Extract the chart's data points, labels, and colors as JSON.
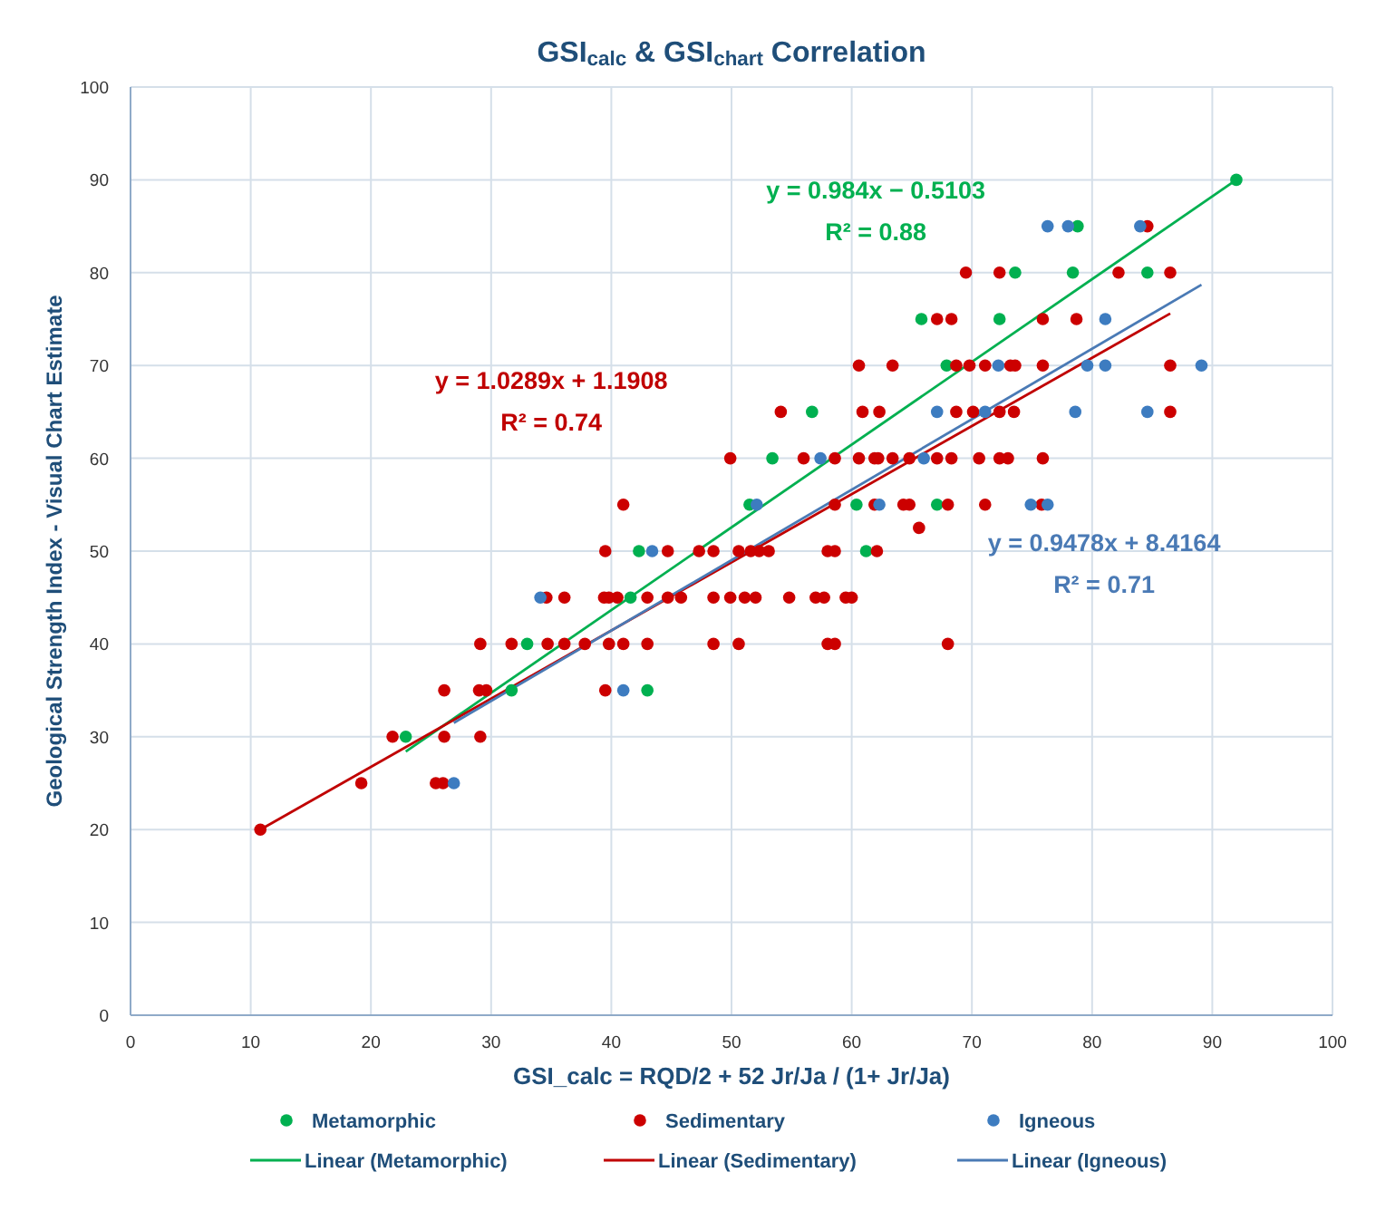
{
  "chart_data": {
    "type": "scatter",
    "title": "GSI$_{calc}$ & GSI$_{chart}$ Correlation",
    "xlabel": "GSI_calc = RQD/2 + 52 Jr/Ja / (1+ Jr/Ja)",
    "ylabel": "Geological Strength Index - Visual Chart Estimate",
    "xlim": [
      0,
      100
    ],
    "xticks": [
      0,
      10,
      20,
      30,
      40,
      50,
      60,
      70,
      80,
      90,
      100
    ],
    "ylim": [
      0,
      100
    ],
    "yticks": [
      0,
      10,
      20,
      30,
      40,
      50,
      60,
      70,
      80,
      90,
      100
    ],
    "grid": true,
    "legend": "bottom",
    "series": [
      {
        "name": "Metamorphic",
        "marker": "circle",
        "color": "#00b050",
        "x": [
          22.9,
          31.7,
          33,
          41.6,
          42.3,
          43,
          51.5,
          53.4,
          56.7,
          60.4,
          61.2,
          65.8,
          67.1,
          67.9,
          72.3,
          73.6,
          78.4,
          84.6,
          78.8,
          92
        ],
        "values": [
          30,
          35,
          40,
          45,
          50,
          35,
          55,
          60,
          65,
          55,
          50,
          75,
          55,
          70,
          75,
          80,
          80,
          80,
          85,
          90
        ]
      },
      {
        "name": "Sedimentary",
        "marker": "circle",
        "color": "#cc0000",
        "x": [
          10.8,
          19.2,
          25.4,
          26,
          21.8,
          26.1,
          29.1,
          26.1,
          29,
          29.6,
          39.5,
          29.1,
          31.7,
          34.7,
          36.1,
          37.8,
          39.8,
          41,
          43,
          48.5,
          50.6,
          58,
          58.6,
          68,
          34.6,
          36.1,
          39.4,
          39.8,
          40.5,
          43,
          44.7,
          45.8,
          48.5,
          49.9,
          51.1,
          52,
          54.8,
          57,
          57.7,
          59.5,
          60,
          39.5,
          44.7,
          47.3,
          48.5,
          50.6,
          51.6,
          52.3,
          53.1,
          58,
          58.6,
          62.1,
          65.6,
          41,
          58.6,
          61.9,
          64.3,
          64.8,
          68,
          71.1,
          75.8,
          49.9,
          56,
          58.6,
          60.6,
          61.9,
          62.2,
          63.4,
          64.8,
          67.1,
          68.3,
          70.6,
          72.3,
          73,
          75.9,
          54.1,
          60.9,
          62.3,
          68.7,
          70.1,
          72.3,
          73.5,
          86.5,
          60.6,
          63.4,
          68.7,
          69.8,
          71.1,
          73.2,
          73.6,
          75.9,
          86.5,
          67.1,
          68.3,
          75.9,
          78.7,
          69.5,
          72.3,
          82.2,
          86.5,
          84.6
        ],
        "values": [
          20,
          25,
          25,
          25,
          30,
          30,
          30,
          35,
          35,
          35,
          35,
          40,
          40,
          40,
          40,
          40,
          40,
          40,
          40,
          40,
          40,
          40,
          40,
          40,
          45,
          45,
          45,
          45,
          45,
          45,
          45,
          45,
          45,
          45,
          45,
          45,
          45,
          45,
          45,
          45,
          45,
          50,
          50,
          50,
          50,
          50,
          50,
          50,
          50,
          50,
          50,
          50,
          52.5,
          55,
          55,
          55,
          55,
          55,
          55,
          55,
          55,
          60,
          60,
          60,
          60,
          60,
          60,
          60,
          60,
          60,
          60,
          60,
          60,
          60,
          60,
          65,
          65,
          65,
          65,
          65,
          65,
          65,
          65,
          70,
          70,
          70,
          70,
          70,
          70,
          70,
          70,
          70,
          75,
          75,
          75,
          75,
          80,
          80,
          80,
          80,
          85
        ]
      },
      {
        "name": "Igneous",
        "marker": "circle",
        "color": "#3d7cc0",
        "x": [
          26.9,
          34.1,
          41,
          43.4,
          52.1,
          57.4,
          62.3,
          66,
          67.1,
          71.1,
          72.2,
          74.9,
          76.3,
          78.6,
          79.6,
          81.1,
          81.1,
          84.6,
          89.1,
          76.3,
          78,
          84
        ],
        "values": [
          25,
          45,
          35,
          50,
          55,
          60,
          55,
          60,
          65,
          65,
          70,
          55,
          55,
          65,
          70,
          70,
          75,
          65,
          70,
          85,
          85,
          85
        ]
      },
      {
        "name": "Linear (Metamorphic)",
        "type": "line",
        "color": "#00b050",
        "x": [
          22.9,
          92
        ],
        "values": [
          28.4,
          90
        ]
      },
      {
        "name": "Linear (Sedimentary)",
        "type": "line",
        "color": "#c00000",
        "x": [
          10.8,
          86.5
        ],
        "values": [
          20,
          75.6
        ]
      },
      {
        "name": "Linear (Igneous)",
        "type": "line",
        "color": "#4a7ab5",
        "x": [
          26.9,
          89.1
        ],
        "values": [
          31.5,
          78.7
        ]
      }
    ],
    "annotations": [
      "y = 0.984x − 0.5103",
      "R² = 0.88",
      "y = 1.0289x + 1.1908",
      "R² = 0.74",
      "y = 0.9478x + 8.4164",
      "R² = 0.71"
    ]
  }
}
